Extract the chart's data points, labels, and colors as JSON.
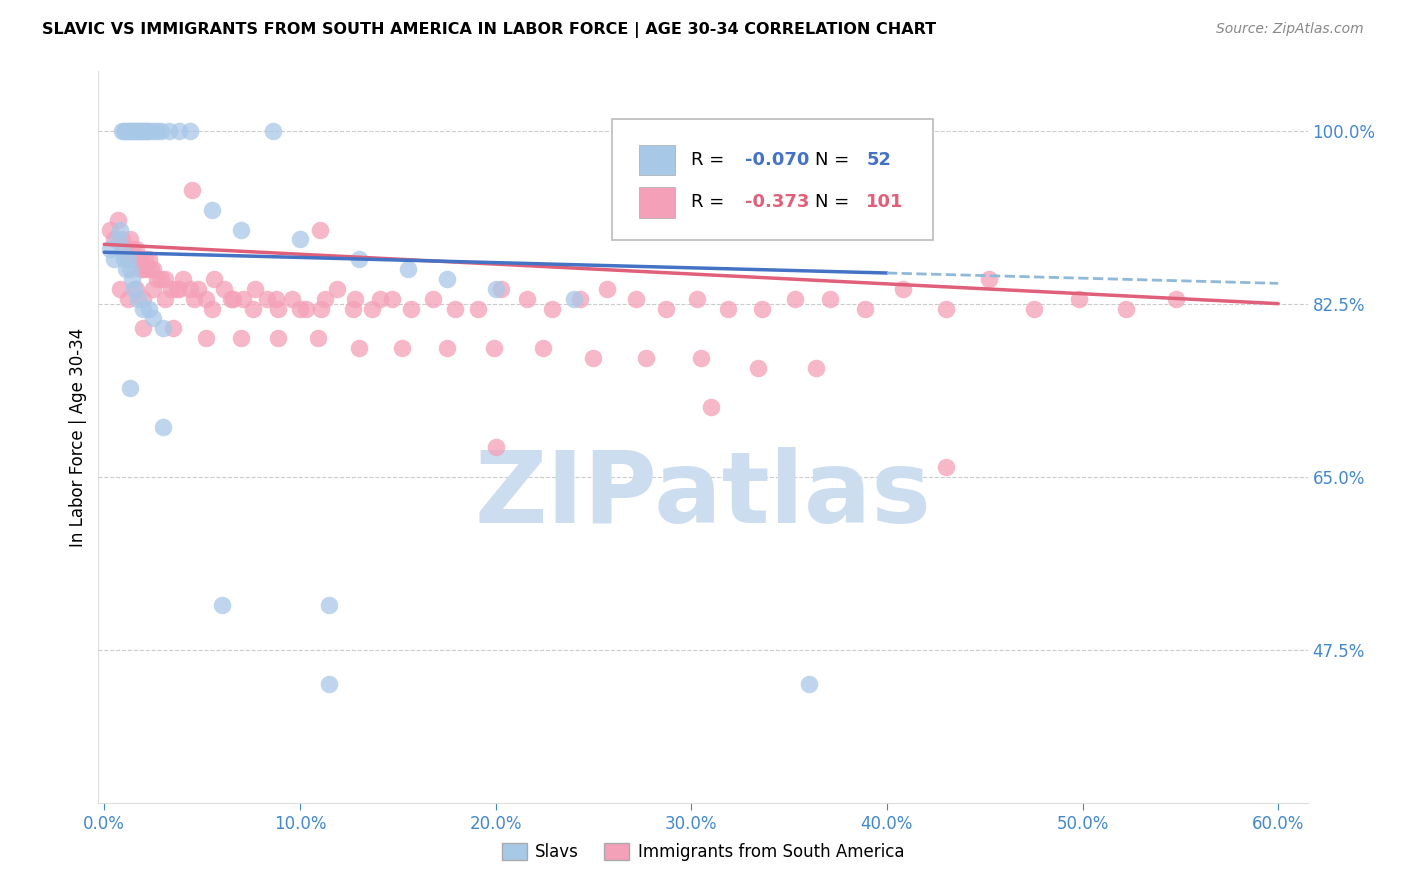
{
  "title": "SLAVIC VS IMMIGRANTS FROM SOUTH AMERICA IN LABOR FORCE | AGE 30-34 CORRELATION CHART",
  "source": "Source: ZipAtlas.com",
  "ylabel_label": "In Labor Force | Age 30-34",
  "legend_blue_r": "-0.070",
  "legend_blue_n": "52",
  "legend_pink_r": "-0.373",
  "legend_pink_n": "101",
  "blue_scatter_color": "#a8c8e8",
  "pink_scatter_color": "#f4a0b8",
  "blue_line_color": "#4472c4",
  "pink_line_color": "#e0607a",
  "dashed_line_color": "#90b8d8",
  "watermark_color": "#ccddf0",
  "axis_color": "#4488cc",
  "grid_color": "#cccccc",
  "background_color": "#ffffff",
  "ytick_vals": [
    1.0,
    0.825,
    0.65,
    0.475
  ],
  "ytick_labels": [
    "100.0%",
    "82.5%",
    "65.0%",
    "47.5%"
  ],
  "xtick_vals": [
    0.0,
    0.1,
    0.2,
    0.3,
    0.4,
    0.5,
    0.6
  ],
  "xtick_labels": [
    "0.0%",
    "10.0%",
    "20.0%",
    "30.0%",
    "40.0%",
    "50.0%",
    "60.0%"
  ],
  "xlim": [
    -0.003,
    0.615
  ],
  "ylim": [
    0.32,
    1.06
  ],
  "blue_x": [
    0.009,
    0.01,
    0.011,
    0.012,
    0.013,
    0.014,
    0.015,
    0.016,
    0.017,
    0.018,
    0.019,
    0.02,
    0.021,
    0.022,
    0.023,
    0.025,
    0.027,
    0.029,
    0.033,
    0.038,
    0.044,
    0.055,
    0.07,
    0.086,
    0.1,
    0.13,
    0.155,
    0.175,
    0.2,
    0.24,
    0.003,
    0.005,
    0.007,
    0.008,
    0.009,
    0.01,
    0.011,
    0.012,
    0.013,
    0.014,
    0.015,
    0.017,
    0.02,
    0.023,
    0.025,
    0.03,
    0.013,
    0.03,
    0.06,
    0.115,
    0.115,
    0.36
  ],
  "blue_y": [
    1.0,
    1.0,
    1.0,
    1.0,
    1.0,
    1.0,
    1.0,
    1.0,
    1.0,
    1.0,
    1.0,
    1.0,
    1.0,
    1.0,
    1.0,
    1.0,
    1.0,
    1.0,
    1.0,
    1.0,
    1.0,
    0.92,
    0.9,
    1.0,
    0.89,
    0.87,
    0.86,
    0.85,
    0.84,
    0.83,
    0.88,
    0.87,
    0.89,
    0.9,
    0.88,
    0.87,
    0.86,
    0.87,
    0.86,
    0.85,
    0.84,
    0.83,
    0.82,
    0.82,
    0.81,
    0.8,
    0.74,
    0.7,
    0.52,
    0.52,
    0.44,
    0.44
  ],
  "pink_x": [
    0.003,
    0.005,
    0.007,
    0.009,
    0.01,
    0.012,
    0.013,
    0.014,
    0.015,
    0.016,
    0.017,
    0.018,
    0.019,
    0.02,
    0.021,
    0.022,
    0.023,
    0.024,
    0.025,
    0.027,
    0.029,
    0.031,
    0.034,
    0.037,
    0.04,
    0.044,
    0.048,
    0.052,
    0.056,
    0.061,
    0.066,
    0.071,
    0.077,
    0.083,
    0.089,
    0.096,
    0.103,
    0.111,
    0.119,
    0.128,
    0.137,
    0.147,
    0.157,
    0.168,
    0.179,
    0.191,
    0.203,
    0.216,
    0.229,
    0.243,
    0.257,
    0.272,
    0.287,
    0.303,
    0.319,
    0.336,
    0.353,
    0.371,
    0.389,
    0.408,
    0.43,
    0.452,
    0.475,
    0.498,
    0.522,
    0.548,
    0.008,
    0.012,
    0.016,
    0.02,
    0.025,
    0.031,
    0.038,
    0.046,
    0.055,
    0.065,
    0.076,
    0.088,
    0.1,
    0.113,
    0.127,
    0.141,
    0.02,
    0.035,
    0.052,
    0.07,
    0.089,
    0.109,
    0.13,
    0.152,
    0.175,
    0.199,
    0.224,
    0.25,
    0.277,
    0.305,
    0.334,
    0.364,
    0.045,
    0.11,
    0.2,
    0.31,
    0.43
  ],
  "pink_y": [
    0.9,
    0.89,
    0.91,
    0.89,
    0.88,
    0.87,
    0.89,
    0.88,
    0.87,
    0.88,
    0.87,
    0.87,
    0.86,
    0.86,
    0.87,
    0.86,
    0.87,
    0.86,
    0.86,
    0.85,
    0.85,
    0.85,
    0.84,
    0.84,
    0.85,
    0.84,
    0.84,
    0.83,
    0.85,
    0.84,
    0.83,
    0.83,
    0.84,
    0.83,
    0.82,
    0.83,
    0.82,
    0.82,
    0.84,
    0.83,
    0.82,
    0.83,
    0.82,
    0.83,
    0.82,
    0.82,
    0.84,
    0.83,
    0.82,
    0.83,
    0.84,
    0.83,
    0.82,
    0.83,
    0.82,
    0.82,
    0.83,
    0.83,
    0.82,
    0.84,
    0.82,
    0.85,
    0.82,
    0.83,
    0.82,
    0.83,
    0.84,
    0.83,
    0.84,
    0.83,
    0.84,
    0.83,
    0.84,
    0.83,
    0.82,
    0.83,
    0.82,
    0.83,
    0.82,
    0.83,
    0.82,
    0.83,
    0.8,
    0.8,
    0.79,
    0.79,
    0.79,
    0.79,
    0.78,
    0.78,
    0.78,
    0.78,
    0.78,
    0.77,
    0.77,
    0.77,
    0.76,
    0.76,
    0.94,
    0.9,
    0.68,
    0.72,
    0.66
  ]
}
